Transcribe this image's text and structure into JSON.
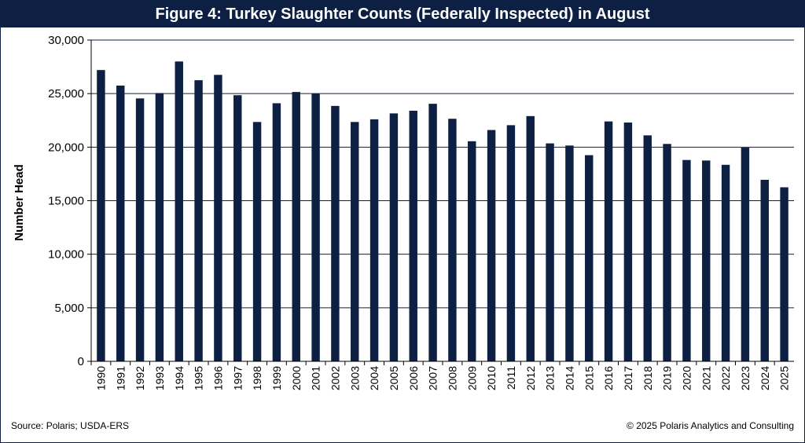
{
  "title": "Figure 4: Turkey Slaughter Counts (Federally Inspected) in August",
  "source": "Source: Polaris; USDA-ERS",
  "copyright": "© 2025 Polaris Analytics and Consulting",
  "colors": {
    "bar": "#0d2043",
    "title_bg": "#0d2043",
    "grid": "#0d2043"
  },
  "chart_data": {
    "type": "bar",
    "title": "Figure 4: Turkey Slaughter Counts (Federally Inspected) in August",
    "xlabel": "",
    "ylabel": "Number Head",
    "ylim": [
      0,
      30000
    ],
    "yticks": [
      0,
      5000,
      10000,
      15000,
      20000,
      25000,
      30000
    ],
    "ytick_labels": [
      "0",
      "5,000",
      "10,000",
      "15,000",
      "20,000",
      "25,000",
      "30,000"
    ],
    "grid": true,
    "legend": "none",
    "categories": [
      "1990",
      "1991",
      "1992",
      "1993",
      "1994",
      "1995",
      "1996",
      "1997",
      "1998",
      "1999",
      "2000",
      "2001",
      "2002",
      "2003",
      "2004",
      "2005",
      "2006",
      "2007",
      "2008",
      "2009",
      "2010",
      "2011",
      "2012",
      "2013",
      "2014",
      "2015",
      "2016",
      "2017",
      "2018",
      "2019",
      "2020",
      "2021",
      "2022",
      "2023",
      "2024",
      "2025"
    ],
    "values": [
      27200,
      25750,
      24550,
      25050,
      28000,
      26250,
      26750,
      24850,
      22350,
      24100,
      25150,
      25000,
      23850,
      22350,
      22600,
      23150,
      23400,
      24050,
      22650,
      20550,
      21600,
      22050,
      22900,
      20350,
      20150,
      19250,
      22400,
      22300,
      21100,
      20300,
      18800,
      18750,
      18350,
      19950,
      16950,
      16250
    ]
  }
}
